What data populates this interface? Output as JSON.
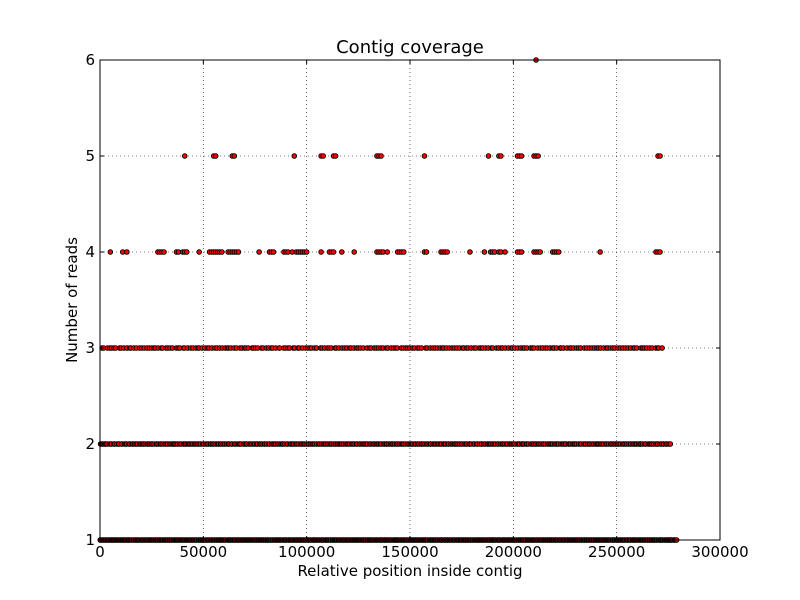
{
  "chart_data": {
    "type": "scatter",
    "title": "Contig coverage",
    "xlabel": "Relative position inside contig",
    "ylabel": "Number of reads",
    "xlim": [
      0,
      300000
    ],
    "ylim": [
      1,
      6
    ],
    "xticks": [
      0,
      50000,
      100000,
      150000,
      200000,
      250000,
      300000
    ],
    "yticks": [
      1,
      2,
      3,
      4,
      5,
      6
    ],
    "xtick_labels": [
      "0",
      "50000",
      "100000",
      "150000",
      "200000",
      "250000",
      "300000"
    ],
    "ytick_labels": [
      "1",
      "2",
      "3",
      "4",
      "5",
      "6"
    ],
    "grid": true,
    "marker_color": "#ff0000",
    "marker_edge_color": "#000000",
    "series": [
      {
        "y": 6,
        "x": [
          211000
        ]
      },
      {
        "y": 5,
        "x": [
          41000,
          55000,
          56000,
          64000,
          65000,
          94000,
          107000,
          108000,
          113000,
          114000,
          134000,
          135000,
          136000,
          157000,
          188000,
          193000,
          194000,
          202000,
          203000,
          204000,
          210000,
          211000,
          212000,
          270000,
          271000
        ]
      },
      {
        "y": 4,
        "x": [
          5000,
          11000,
          13000,
          28000,
          29000,
          30000,
          31000,
          37000,
          38000,
          40000,
          41000,
          42000,
          48000,
          53000,
          54000,
          55000,
          56000,
          57000,
          58000,
          59000,
          62000,
          63000,
          64000,
          65000,
          66000,
          67000,
          77000,
          82000,
          83000,
          84000,
          89000,
          90000,
          91000,
          93000,
          95000,
          96000,
          97000,
          98000,
          99000,
          100000,
          107000,
          111000,
          112000,
          113000,
          117000,
          123000,
          134000,
          135000,
          136000,
          137000,
          139000,
          144000,
          145000,
          146000,
          147000,
          157000,
          158000,
          165000,
          166000,
          167000,
          168000,
          179000,
          186000,
          189000,
          190000,
          191000,
          193000,
          194000,
          196000,
          202000,
          203000,
          204000,
          210000,
          211000,
          212000,
          213000,
          219000,
          220000,
          221000,
          222000,
          242000,
          269000,
          270000,
          271000
        ]
      },
      {
        "y": 3,
        "x_range": [
          1000,
          272000
        ],
        "count": 230
      },
      {
        "y": 2,
        "x_range": [
          0,
          276000
        ],
        "count": 380
      },
      {
        "y": 1,
        "x_range": [
          0,
          279000
        ],
        "count": 560
      }
    ]
  }
}
